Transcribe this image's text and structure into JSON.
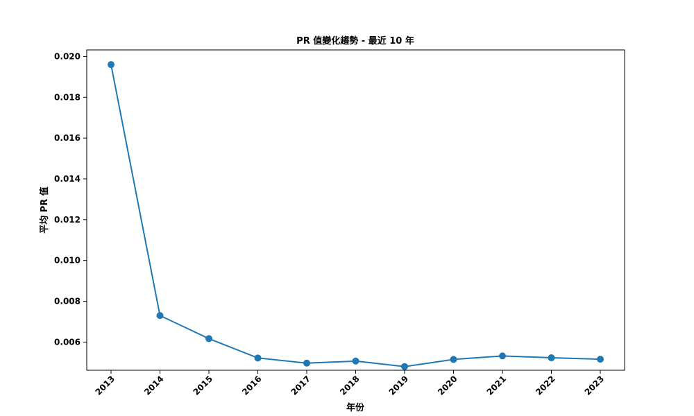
{
  "chart_data": {
    "type": "line",
    "title": "PR 值變化趨勢 - 最近 10 年",
    "xlabel": "年份",
    "ylabel": "平均 PR 值",
    "categories": [
      "2013",
      "2014",
      "2015",
      "2016",
      "2017",
      "2018",
      "2019",
      "2020",
      "2021",
      "2022",
      "2023"
    ],
    "series": [
      {
        "values": [
          0.0196,
          0.0073,
          0.00617,
          0.00522,
          0.00497,
          0.00507,
          0.0048,
          0.00515,
          0.00532,
          0.00523,
          0.00516
        ]
      }
    ],
    "yticks": [
      "0.006",
      "0.008",
      "0.010",
      "0.012",
      "0.014",
      "0.016",
      "0.018",
      "0.020"
    ],
    "ylim": [
      0.00462,
      0.02032
    ],
    "grid": false,
    "line_color": "#1f77b4",
    "marker": "circle"
  }
}
